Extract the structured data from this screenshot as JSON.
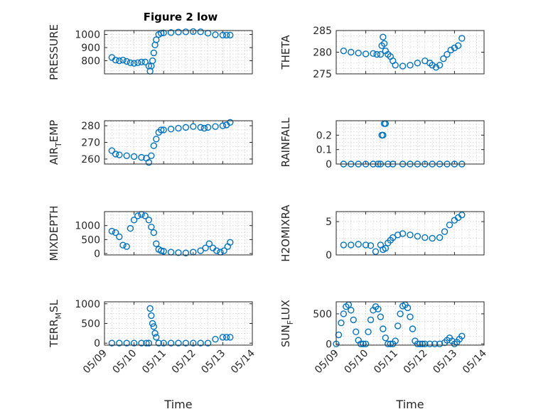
{
  "figure_title": "Figure 2 low",
  "colors": {
    "marker": "#0072BD",
    "axis": "#262626",
    "grid": "#cfcfcf"
  },
  "chart_data": [
    {
      "id": "pressure",
      "type": "scatter",
      "ylabel": "PRESSURE",
      "ylabel_sub": "",
      "ylim": [
        700,
        1030
      ],
      "yticks": [
        800,
        900,
        1000
      ],
      "xlim": [
        "05/09",
        "05/14"
      ],
      "xtick_labels": [],
      "xlabel": "",
      "grid": true,
      "marker": "circle-open",
      "x": [
        "05/09 06:00",
        "05/09 09:00",
        "05/09 12:00",
        "05/09 15:00",
        "05/09 18:00",
        "05/09 21:00",
        "05/10 00:00",
        "05/10 03:00",
        "05/10 06:00",
        "05/10 09:00",
        "05/10 12:00",
        "05/10 13:00",
        "05/10 14:00",
        "05/10 15:00",
        "05/10 16:00",
        "05/10 17:00",
        "05/10 18:00",
        "05/10 20:00",
        "05/10 22:00",
        "05/11 00:00",
        "05/11 06:00",
        "05/11 12:00",
        "05/11 18:00",
        "05/12 00:00",
        "05/12 06:00",
        "05/12 12:00",
        "05/12 18:00",
        "05/13 00:00",
        "05/13 03:00",
        "05/13 06:00"
      ],
      "y": [
        825,
        805,
        800,
        805,
        795,
        785,
        780,
        785,
        790,
        790,
        760,
        720,
        760,
        800,
        860,
        920,
        960,
        1000,
        1010,
        1012,
        1015,
        1018,
        1020,
        1022,
        1020,
        1010,
        998,
        995,
        995,
        995
      ],
      "title": "Figure 2 low"
    },
    {
      "id": "theta",
      "type": "scatter",
      "ylabel": "THETA",
      "ylabel_sub": "",
      "ylim": [
        275,
        285
      ],
      "yticks": [
        275,
        280,
        285
      ],
      "xlim": [
        "05/09",
        "05/14"
      ],
      "xtick_labels": [],
      "xlabel": "",
      "grid": true,
      "marker": "circle-open",
      "x": [
        "05/09 06:00",
        "05/09 12:00",
        "05/09 18:00",
        "05/10 00:00",
        "05/10 06:00",
        "05/10 09:00",
        "05/10 12:00",
        "05/10 13:00",
        "05/10 14:00",
        "05/10 15:00",
        "05/10 16:00",
        "05/10 18:00",
        "05/10 20:00",
        "05/10 22:00",
        "05/11 00:00",
        "05/11 06:00",
        "05/11 12:00",
        "05/11 18:00",
        "05/12 00:00",
        "05/12 04:00",
        "05/12 06:00",
        "05/12 09:00",
        "05/12 12:00",
        "05/12 15:00",
        "05/12 18:00",
        "05/12 21:00",
        "05/13 00:00",
        "05/13 03:00",
        "05/13 06:00"
      ],
      "y": [
        280.3,
        280,
        279.8,
        279.6,
        279.7,
        279.5,
        279.5,
        281.5,
        283.5,
        282,
        280.3,
        279.5,
        279,
        278,
        277,
        276.8,
        277,
        277.5,
        278,
        277.5,
        277,
        276.5,
        277,
        278.5,
        279.5,
        280.5,
        281,
        281.5,
        283.2
      ]
    },
    {
      "id": "air_temp",
      "type": "scatter",
      "ylabel": "AIR",
      "ylabel_sub": "T",
      "ylabel_tail": "EMP",
      "ylim": [
        257,
        283
      ],
      "yticks": [
        260,
        270,
        280
      ],
      "xlim": [
        "05/09",
        "05/14"
      ],
      "xtick_labels": [],
      "xlabel": "",
      "grid": true,
      "marker": "circle-open",
      "x": [
        "05/09 06:00",
        "05/09 09:00",
        "05/09 12:00",
        "05/09 18:00",
        "05/10 00:00",
        "05/10 06:00",
        "05/10 10:00",
        "05/10 12:00",
        "05/10 14:00",
        "05/10 16:00",
        "05/10 18:00",
        "05/10 20:00",
        "05/10 22:00",
        "05/11 00:00",
        "05/11 06:00",
        "05/11 12:00",
        "05/11 18:00",
        "05/12 00:00",
        "05/12 06:00",
        "05/12 09:00",
        "05/12 12:00",
        "05/12 18:00",
        "05/13 00:00",
        "05/13 03:00",
        "05/13 06:00"
      ],
      "y": [
        265,
        263,
        262.5,
        262,
        261.5,
        261,
        260.5,
        258,
        262,
        268,
        272,
        276,
        277.5,
        277.5,
        278,
        278.5,
        279,
        279.5,
        279,
        278.5,
        279,
        279.5,
        280,
        280.5,
        282
      ]
    },
    {
      "id": "rainfall",
      "type": "scatter",
      "ylabel": "RAINFALL",
      "ylabel_sub": "",
      "ylim": [
        0,
        0.3
      ],
      "yticks": [
        0,
        0.1,
        0.2
      ],
      "xlim": [
        "05/09",
        "05/14"
      ],
      "xtick_labels": [],
      "xlabel": "",
      "grid": true,
      "marker": "circle-open",
      "x": [
        "05/09 06:00",
        "05/09 12:00",
        "05/09 18:00",
        "05/10 00:00",
        "05/10 06:00",
        "05/10 10:00",
        "05/10 12:00",
        "05/10 13:00",
        "05/10 14:00",
        "05/10 15:00",
        "05/10 16:00",
        "05/10 18:00",
        "05/10 22:00",
        "05/11 06:00",
        "05/11 12:00",
        "05/11 18:00",
        "05/12 00:00",
        "05/12 06:00",
        "05/12 12:00",
        "05/12 18:00",
        "05/13 00:00",
        "05/13 06:00"
      ],
      "y": [
        0,
        0,
        0,
        0,
        0,
        0,
        0,
        0.2,
        0.2,
        0.28,
        0.28,
        0,
        0,
        0,
        0,
        0,
        0,
        0,
        0,
        0,
        0,
        0
      ]
    },
    {
      "id": "mixdepth",
      "type": "scatter",
      "ylabel": "MIXDEPTH",
      "ylabel_sub": "",
      "ylim": [
        -50,
        1500
      ],
      "yticks": [
        0,
        500,
        1000
      ],
      "xlim": [
        "05/09",
        "05/14"
      ],
      "xtick_labels": [],
      "xlabel": "",
      "grid": true,
      "marker": "circle-open",
      "x": [
        "05/09 06:00",
        "05/09 09:00",
        "05/09 12:00",
        "05/09 15:00",
        "05/09 18:00",
        "05/09 21:00",
        "05/10 00:00",
        "05/10 03:00",
        "05/10 06:00",
        "05/10 09:00",
        "05/10 12:00",
        "05/10 14:00",
        "05/10 16:00",
        "05/10 18:00",
        "05/10 20:00",
        "05/10 22:00",
        "05/11 00:00",
        "05/11 06:00",
        "05/11 12:00",
        "05/11 18:00",
        "05/12 00:00",
        "05/12 06:00",
        "05/12 10:00",
        "05/12 13:00",
        "05/12 16:00",
        "05/12 19:00",
        "05/12 22:00",
        "05/13 01:00",
        "05/13 04:00",
        "05/13 06:00"
      ],
      "y": [
        800,
        750,
        600,
        300,
        250,
        900,
        1200,
        1350,
        1400,
        1350,
        1200,
        950,
        750,
        350,
        150,
        100,
        80,
        50,
        30,
        20,
        50,
        100,
        200,
        350,
        200,
        100,
        50,
        100,
        250,
        400
      ]
    },
    {
      "id": "h2omixra",
      "type": "scatter",
      "ylabel": "H2OMIXRA",
      "ylabel_sub": "",
      "ylim": [
        0,
        6.5
      ],
      "yticks": [
        0,
        5
      ],
      "xlim": [
        "05/09",
        "05/14"
      ],
      "xtick_labels": [],
      "xlabel": "",
      "grid": true,
      "marker": "circle-open",
      "x": [
        "05/09 06:00",
        "05/09 12:00",
        "05/09 18:00",
        "05/10 00:00",
        "05/10 04:00",
        "05/10 08:00",
        "05/10 12:00",
        "05/10 14:00",
        "05/10 16:00",
        "05/10 18:00",
        "05/10 20:00",
        "05/10 22:00",
        "05/11 02:00",
        "05/11 06:00",
        "05/11 12:00",
        "05/11 18:00",
        "05/12 00:00",
        "05/12 06:00",
        "05/12 12:00",
        "05/12 16:00",
        "05/12 20:00",
        "05/13 00:00",
        "05/13 03:00",
        "05/13 06:00"
      ],
      "y": [
        1.5,
        1.5,
        1.6,
        1.5,
        1.4,
        0.5,
        1.5,
        0.8,
        1.0,
        1.8,
        2.2,
        2.6,
        3.0,
        3.2,
        3.0,
        2.8,
        2.6,
        2.5,
        2.6,
        3.5,
        4.5,
        5.2,
        5.6,
        6.0
      ]
    },
    {
      "id": "terr_msl",
      "type": "scatter",
      "ylabel": "TERR",
      "ylabel_sub": "M",
      "ylabel_tail": "SL",
      "ylim": [
        -50,
        1050
      ],
      "yticks": [
        0,
        500,
        1000
      ],
      "xlim": [
        "05/09",
        "05/14"
      ],
      "xtick_labels": [
        "05/09",
        "05/10",
        "05/11",
        "05/12",
        "05/13",
        "05/14"
      ],
      "xlabel": "Time",
      "grid": true,
      "marker": "circle-open",
      "x": [
        "05/09 06:00",
        "05/09 12:00",
        "05/09 18:00",
        "05/10 00:00",
        "05/10 06:00",
        "05/10 10:00",
        "05/10 12:00",
        "05/10 13:00",
        "05/10 14:00",
        "05/10 15:00",
        "05/10 16:00",
        "05/10 17:00",
        "05/10 18:00",
        "05/10 20:00",
        "05/11 00:00",
        "05/11 06:00",
        "05/11 12:00",
        "05/11 18:00",
        "05/12 00:00",
        "05/12 06:00",
        "05/12 12:00",
        "05/12 18:00",
        "05/13 00:00",
        "05/13 03:00",
        "05/13 06:00"
      ],
      "y": [
        0,
        0,
        0,
        0,
        0,
        0,
        0,
        880,
        700,
        500,
        420,
        250,
        150,
        0,
        0,
        0,
        0,
        0,
        0,
        0,
        0,
        100,
        150,
        150,
        150
      ]
    },
    {
      "id": "sun_flux",
      "type": "scatter",
      "ylabel": "SUN",
      "ylabel_sub": "F",
      "ylabel_tail": "LUX",
      "ylim": [
        -20,
        700
      ],
      "yticks": [
        0,
        500
      ],
      "xlim": [
        "05/09",
        "05/14"
      ],
      "xtick_labels": [
        "05/09",
        "05/10",
        "05/11",
        "05/12",
        "05/13",
        "05/14"
      ],
      "xlabel": "Time",
      "grid": true,
      "marker": "circle-open",
      "x": [
        "05/09 00:00",
        "05/09 02:00",
        "05/09 04:00",
        "05/09 06:00",
        "05/09 08:00",
        "05/09 10:00",
        "05/09 12:00",
        "05/09 14:00",
        "05/09 16:00",
        "05/09 18:00",
        "05/09 20:00",
        "05/09 22:00",
        "05/10 00:00",
        "05/10 02:00",
        "05/10 04:00",
        "05/10 06:00",
        "05/10 08:00",
        "05/10 10:00",
        "05/10 12:00",
        "05/10 14:00",
        "05/10 16:00",
        "05/10 18:00",
        "05/10 20:00",
        "05/10 22:00",
        "05/11 00:00",
        "05/11 02:00",
        "05/11 04:00",
        "05/11 06:00",
        "05/11 08:00",
        "05/11 10:00",
        "05/11 12:00",
        "05/11 14:00",
        "05/11 16:00",
        "05/11 18:00",
        "05/11 20:00",
        "05/11 22:00",
        "05/12 00:00",
        "05/12 04:00",
        "05/12 08:00",
        "05/12 12:00",
        "05/12 16:00",
        "05/12 18:00",
        "05/12 20:00",
        "05/12 22:00",
        "05/13 00:00",
        "05/13 02:00",
        "05/13 04:00",
        "05/13 06:00"
      ],
      "y": [
        0,
        150,
        350,
        500,
        620,
        650,
        560,
        400,
        200,
        60,
        0,
        0,
        0,
        200,
        400,
        560,
        620,
        580,
        450,
        250,
        100,
        0,
        0,
        0,
        50,
        300,
        500,
        630,
        650,
        600,
        450,
        250,
        50,
        0,
        0,
        0,
        0,
        0,
        0,
        0,
        20,
        60,
        100,
        50,
        0,
        30,
        80,
        130
      ]
    }
  ]
}
